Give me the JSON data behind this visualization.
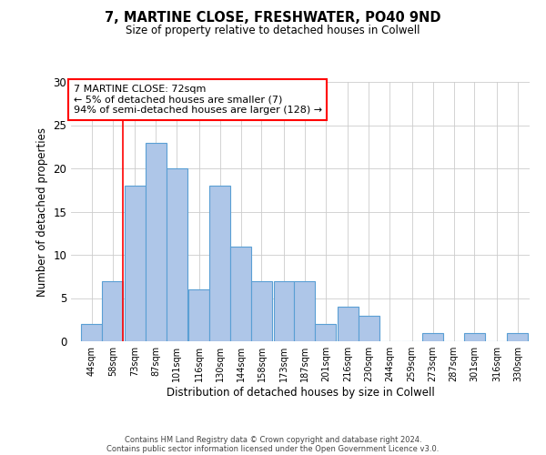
{
  "title_line1": "7, MARTINE CLOSE, FRESHWATER, PO40 9ND",
  "title_line2": "Size of property relative to detached houses in Colwell",
  "xlabel": "Distribution of detached houses by size in Colwell",
  "ylabel": "Number of detached properties",
  "bar_labels": [
    "44sqm",
    "58sqm",
    "73sqm",
    "87sqm",
    "101sqm",
    "116sqm",
    "130sqm",
    "144sqm",
    "158sqm",
    "173sqm",
    "187sqm",
    "201sqm",
    "216sqm",
    "230sqm",
    "244sqm",
    "259sqm",
    "273sqm",
    "287sqm",
    "301sqm",
    "316sqm",
    "330sqm"
  ],
  "bar_values": [
    2,
    7,
    18,
    23,
    20,
    6,
    18,
    11,
    7,
    7,
    7,
    2,
    4,
    3,
    0,
    0,
    1,
    0,
    1,
    0,
    1
  ],
  "bar_color": "#aec6e8",
  "bar_edge_color": "#5a9fd4",
  "annotation_text": "7 MARTINE CLOSE: 72sqm\n← 5% of detached houses are smaller (7)\n94% of semi-detached houses are larger (128) →",
  "annotation_box_color": "white",
  "annotation_box_edge_color": "red",
  "vline_x_index": 1,
  "vline_color": "red",
  "ylim": [
    0,
    30
  ],
  "yticks": [
    0,
    5,
    10,
    15,
    20,
    25,
    30
  ],
  "footer_line1": "Contains HM Land Registry data © Crown copyright and database right 2024.",
  "footer_line2": "Contains public sector information licensed under the Open Government Licence v3.0.",
  "bin_lefts": [
    44,
    58,
    73,
    87,
    101,
    116,
    130,
    144,
    158,
    173,
    187,
    201,
    216,
    230,
    244,
    259,
    273,
    287,
    301,
    316,
    330
  ],
  "bin_width": 14,
  "xlim_left": 37,
  "xlim_right": 345
}
